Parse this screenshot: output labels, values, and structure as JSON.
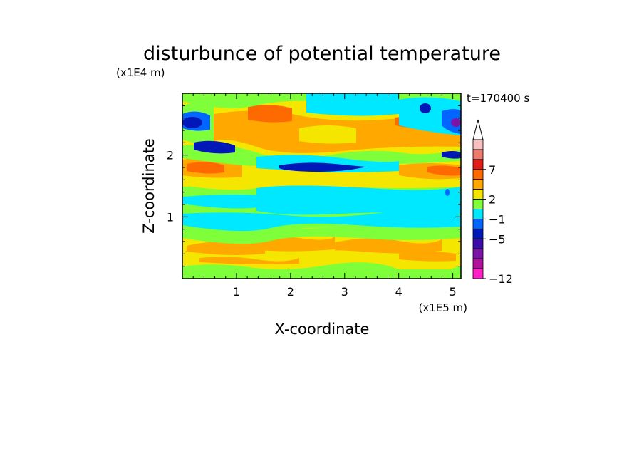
{
  "chart_data": {
    "type": "heatmap",
    "title": "disturbunce of potential temperature",
    "time_label": "t=170400 s",
    "x_axis": {
      "label": "X-coordinate",
      "unit_label": "(x1E5 m)",
      "range": [
        0,
        5.15
      ],
      "ticks": [
        "1",
        "2",
        "3",
        "4",
        "5"
      ],
      "tick_values": [
        1,
        2,
        3,
        4,
        5
      ]
    },
    "y_axis": {
      "label": "Z-coordinate",
      "unit_label": "(x1E4 m)",
      "range": [
        0,
        3.0
      ],
      "ticks": [
        "1",
        "2"
      ],
      "tick_values": [
        1,
        2
      ]
    },
    "colorbar": {
      "labels": [
        "7",
        "2",
        "−1",
        "−5",
        "−12"
      ],
      "levels_top_to_bottom": [
        "#f7c1c1",
        "#ee7a6e",
        "#e31b1b",
        "#ff6a00",
        "#ffa800",
        "#f5e600",
        "#7fff3a",
        "#00e8ff",
        "#0066ff",
        "#0018b8",
        "#3b0ca8",
        "#7a14a8",
        "#b0109a",
        "#ff20c8"
      ],
      "extend_arrow_color": "#ffffff"
    },
    "bands_bottom_to_top": [
      {
        "z_from": 0.0,
        "z_to": 0.07,
        "level": "light green"
      },
      {
        "z_from": 0.07,
        "z_to": 0.55,
        "level": "yellow/orange"
      },
      {
        "z_from": 0.55,
        "z_to": 0.78,
        "level": "yellow"
      },
      {
        "z_from": 0.78,
        "z_to": 0.92,
        "level": "light green"
      },
      {
        "z_from": 0.92,
        "z_to": 1.45,
        "level": "cyan/green"
      },
      {
        "z_from": 1.45,
        "z_to": 1.9,
        "level": "yellow/orange"
      },
      {
        "z_from": 1.9,
        "z_to": 2.05,
        "level": "cyan/green"
      },
      {
        "z_from": 2.05,
        "z_to": 2.8,
        "level": "yellow/orange"
      },
      {
        "z_from": 2.8,
        "z_to": 3.0,
        "level": "green/cyan"
      }
    ]
  },
  "colors": {
    "cyan": "#00e8ff",
    "green": "#7fff3a",
    "yellow": "#f5e600",
    "orange": "#ffa800",
    "dark_orange": "#ff6a00",
    "red": "#ee5a3a",
    "blue": "#0066ff",
    "dark_blue": "#0018b8",
    "purple": "#7a14a8"
  }
}
